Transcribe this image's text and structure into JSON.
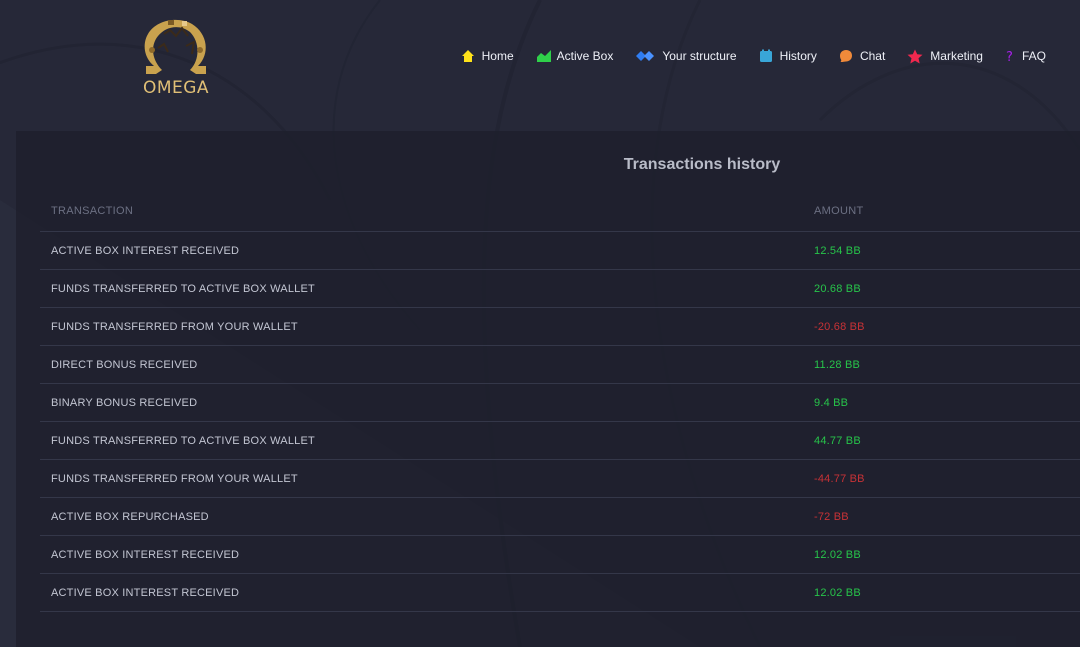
{
  "brand": {
    "name": "OMEGA",
    "logo_icon": "omega-logo-icon",
    "logo_color": "#e0bf76"
  },
  "nav": {
    "items": [
      {
        "label": "Home",
        "icon": "home-icon",
        "color": "#ffe21a"
      },
      {
        "label": "Active Box",
        "icon": "chart-icon",
        "color": "#2fd04a"
      },
      {
        "label": "Your structure",
        "icon": "structure-icon",
        "color": "#2f7df2"
      },
      {
        "label": "History",
        "icon": "history-icon",
        "color": "#39a6d8"
      },
      {
        "label": "Chat",
        "icon": "chat-icon",
        "color": "#f08a3a"
      },
      {
        "label": "Marketing",
        "icon": "star-icon",
        "color": "#f0284e"
      },
      {
        "label": "FAQ",
        "icon": "question-icon",
        "color": "#a520e8"
      }
    ]
  },
  "panel": {
    "title": "Transactions history",
    "columns": {
      "transaction": "TRANSACTION",
      "amount": "AMOUNT"
    },
    "rows": [
      {
        "transaction": "ACTIVE BOX INTEREST RECEIVED",
        "amount": "12.54 BB",
        "sign": "pos"
      },
      {
        "transaction": "FUNDS TRANSFERRED TO ACTIVE BOX WALLET",
        "amount": "20.68 BB",
        "sign": "pos"
      },
      {
        "transaction": "FUNDS TRANSFERRED FROM YOUR WALLET",
        "amount": "-20.68 BB",
        "sign": "neg"
      },
      {
        "transaction": "DIRECT BONUS RECEIVED",
        "amount": "11.28 BB",
        "sign": "pos"
      },
      {
        "transaction": "BINARY BONUS RECEIVED",
        "amount": "9.4 BB",
        "sign": "pos"
      },
      {
        "transaction": "FUNDS TRANSFERRED TO ACTIVE BOX WALLET",
        "amount": "44.77 BB",
        "sign": "pos"
      },
      {
        "transaction": "FUNDS TRANSFERRED FROM YOUR WALLET",
        "amount": "-44.77 BB",
        "sign": "neg"
      },
      {
        "transaction": "ACTIVE BOX REPURCHASED",
        "amount": "-72 BB",
        "sign": "neg"
      },
      {
        "transaction": "ACTIVE BOX INTEREST RECEIVED",
        "amount": "12.02 BB",
        "sign": "pos"
      },
      {
        "transaction": "ACTIVE BOX INTEREST RECEIVED",
        "amount": "12.02 BB",
        "sign": "pos"
      }
    ],
    "colors": {
      "positive": "#27c44a",
      "negative": "#c73236"
    }
  }
}
